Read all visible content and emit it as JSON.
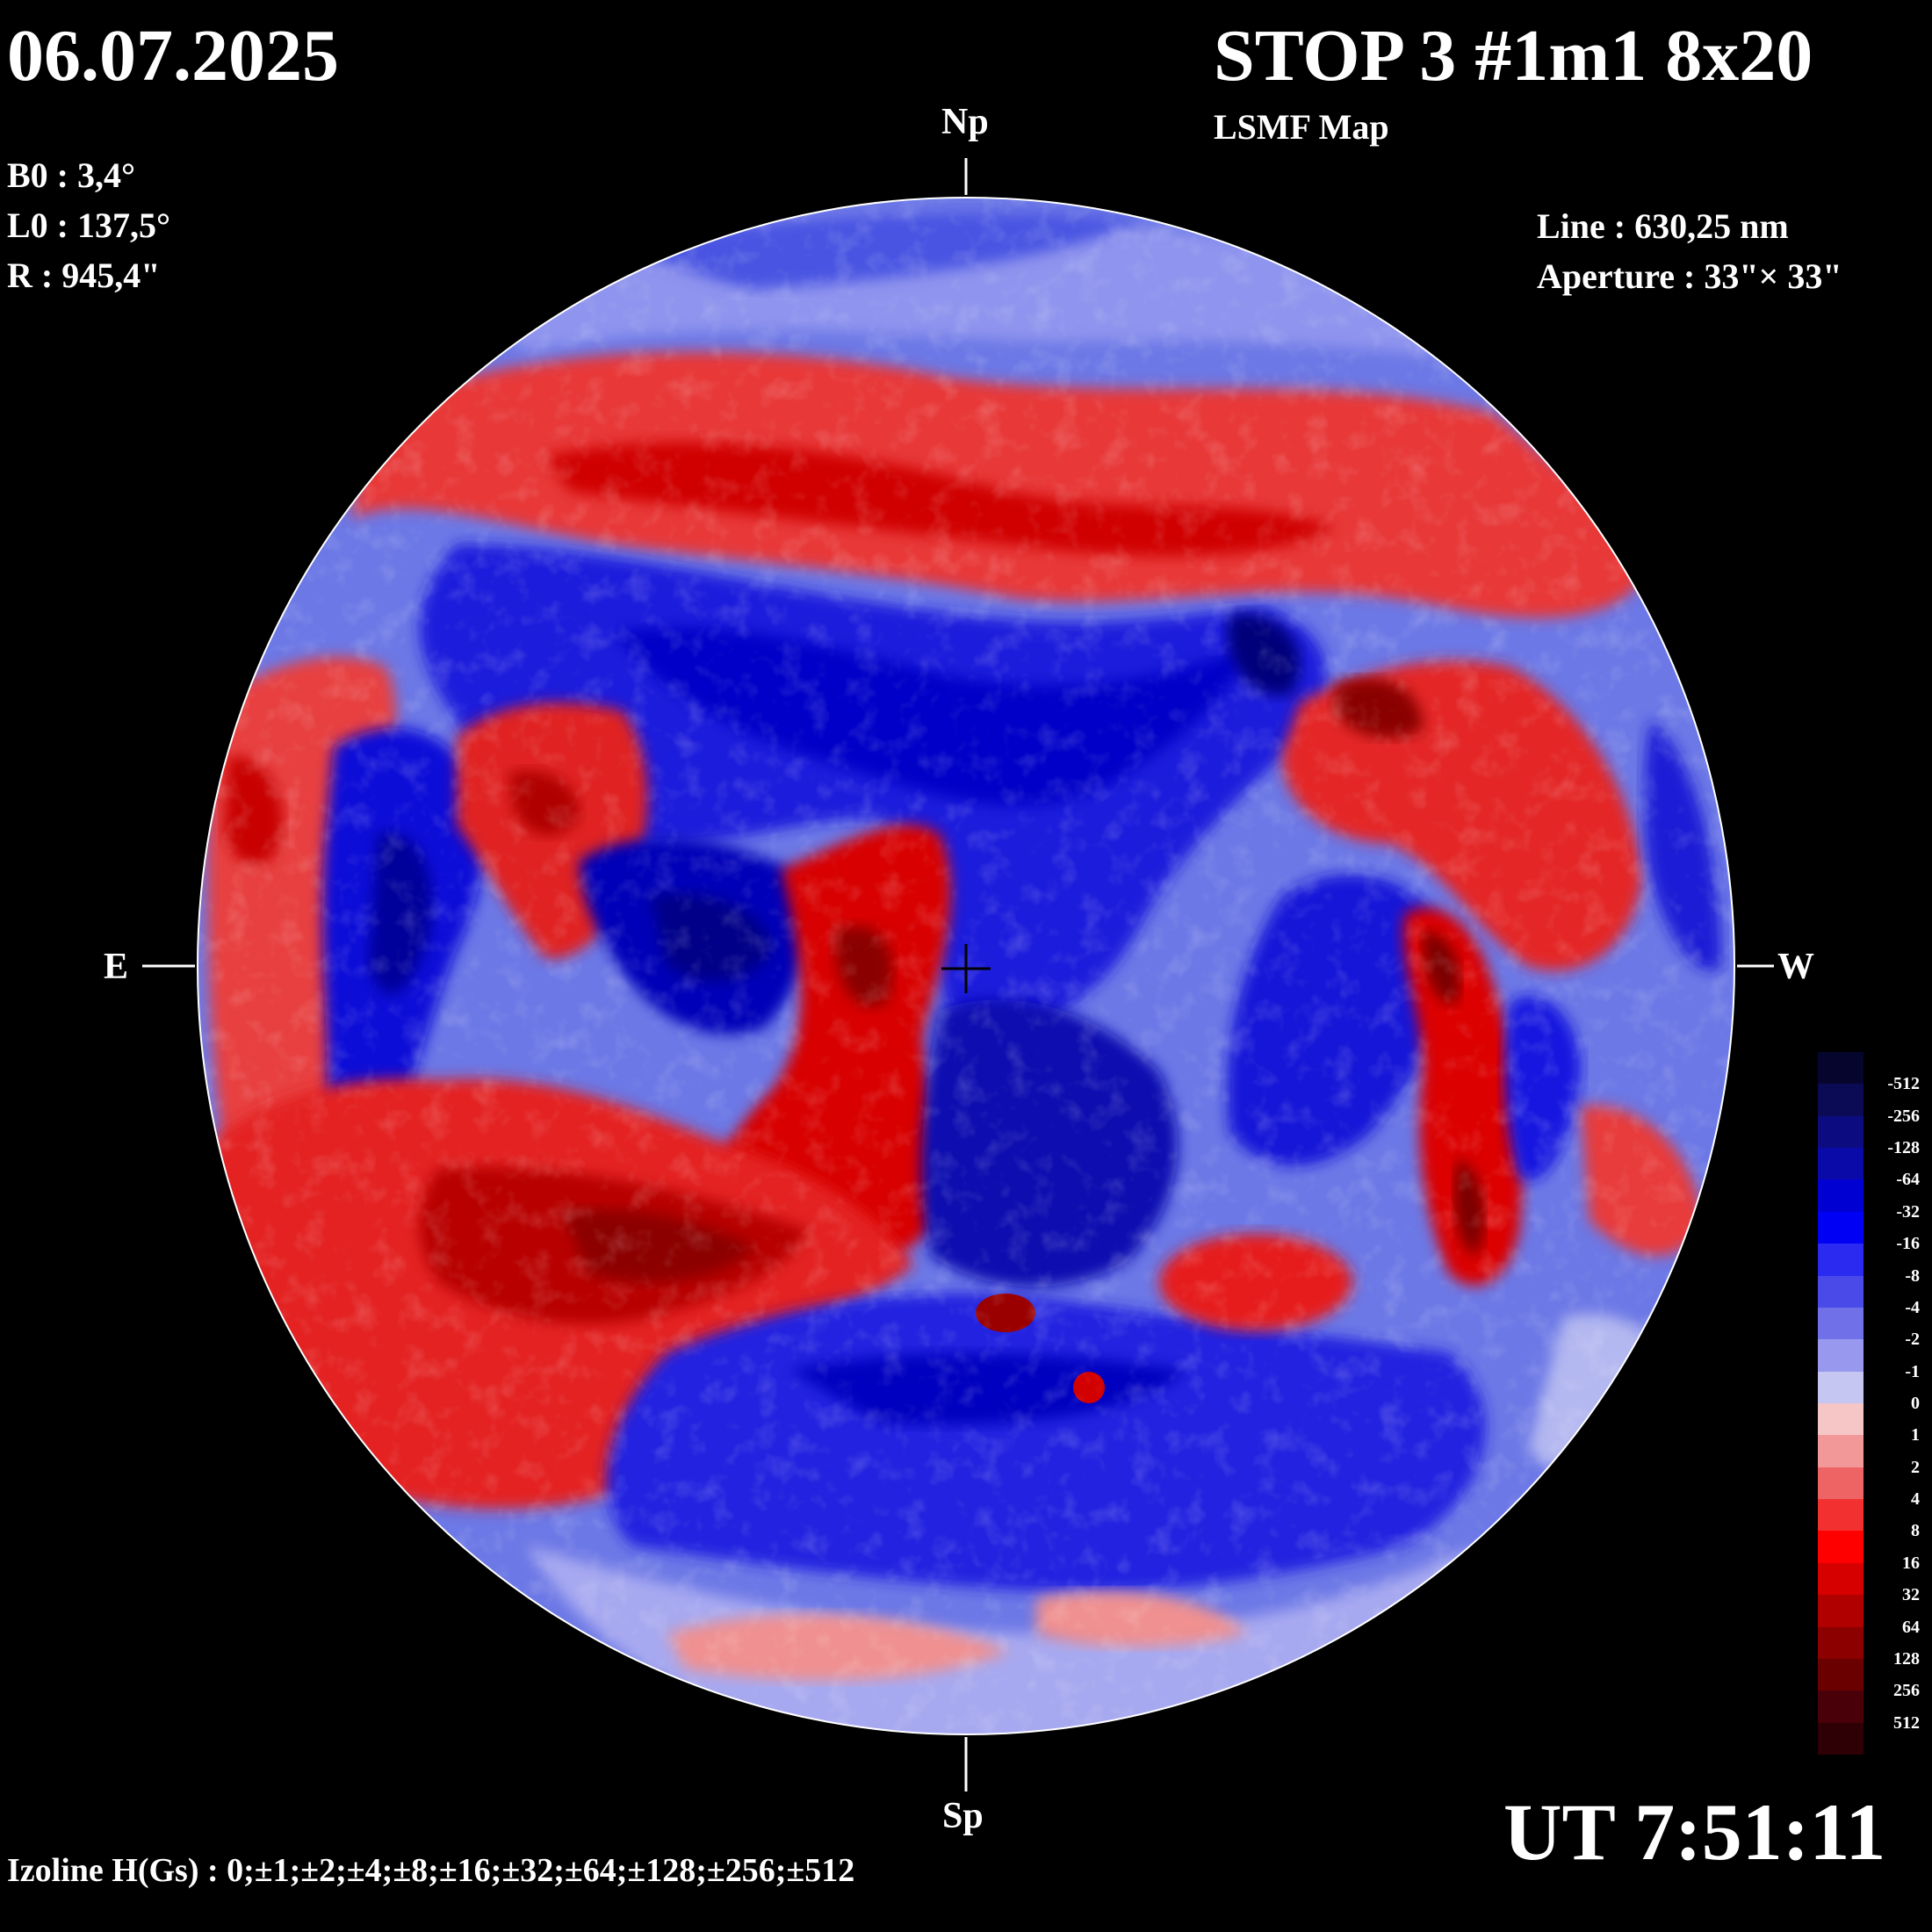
{
  "header": {
    "date": "06.07.2025",
    "title": "STOP 3 #1m1 8x20",
    "subtitle": "LSMF  Map"
  },
  "solar_params": {
    "b0": "B0 : 3,4°",
    "l0": "L0 : 137,5°",
    "r": "R  : 945,4\""
  },
  "instrument": {
    "line": "Line :  630,25 nm",
    "aperture": "Aperture : 33\"× 33\""
  },
  "directions": {
    "north": "Np",
    "south": "Sp",
    "east": "E",
    "west": "W"
  },
  "legend": {
    "labels": [
      "-512",
      "-256",
      "-128",
      "-64",
      "-32",
      "-16",
      "-8",
      "-4",
      "-2",
      "-1",
      "0",
      "1",
      "2",
      "4",
      "8",
      "16",
      "32",
      "64",
      "128",
      "256",
      "512"
    ],
    "colors": [
      "#05052e",
      "#0a0a55",
      "#0c0c80",
      "#0a0aa8",
      "#0000d2",
      "#0000f5",
      "#2a2af0",
      "#4a4ae8",
      "#7070e8",
      "#9898ee",
      "#c6c6f2",
      "#f6c6c6",
      "#f29898",
      "#ee6464",
      "#f23030",
      "#ff0000",
      "#d60000",
      "#b00000",
      "#8c0000",
      "#6a0000",
      "#4a0008",
      "#2e0006"
    ]
  },
  "footer": {
    "izoline": "Izoline H(Gs) : 0;±1;±2;±4;±8;±16;±32;±64;±128;±256;±512",
    "ut": "UT 7:51:11"
  }
}
